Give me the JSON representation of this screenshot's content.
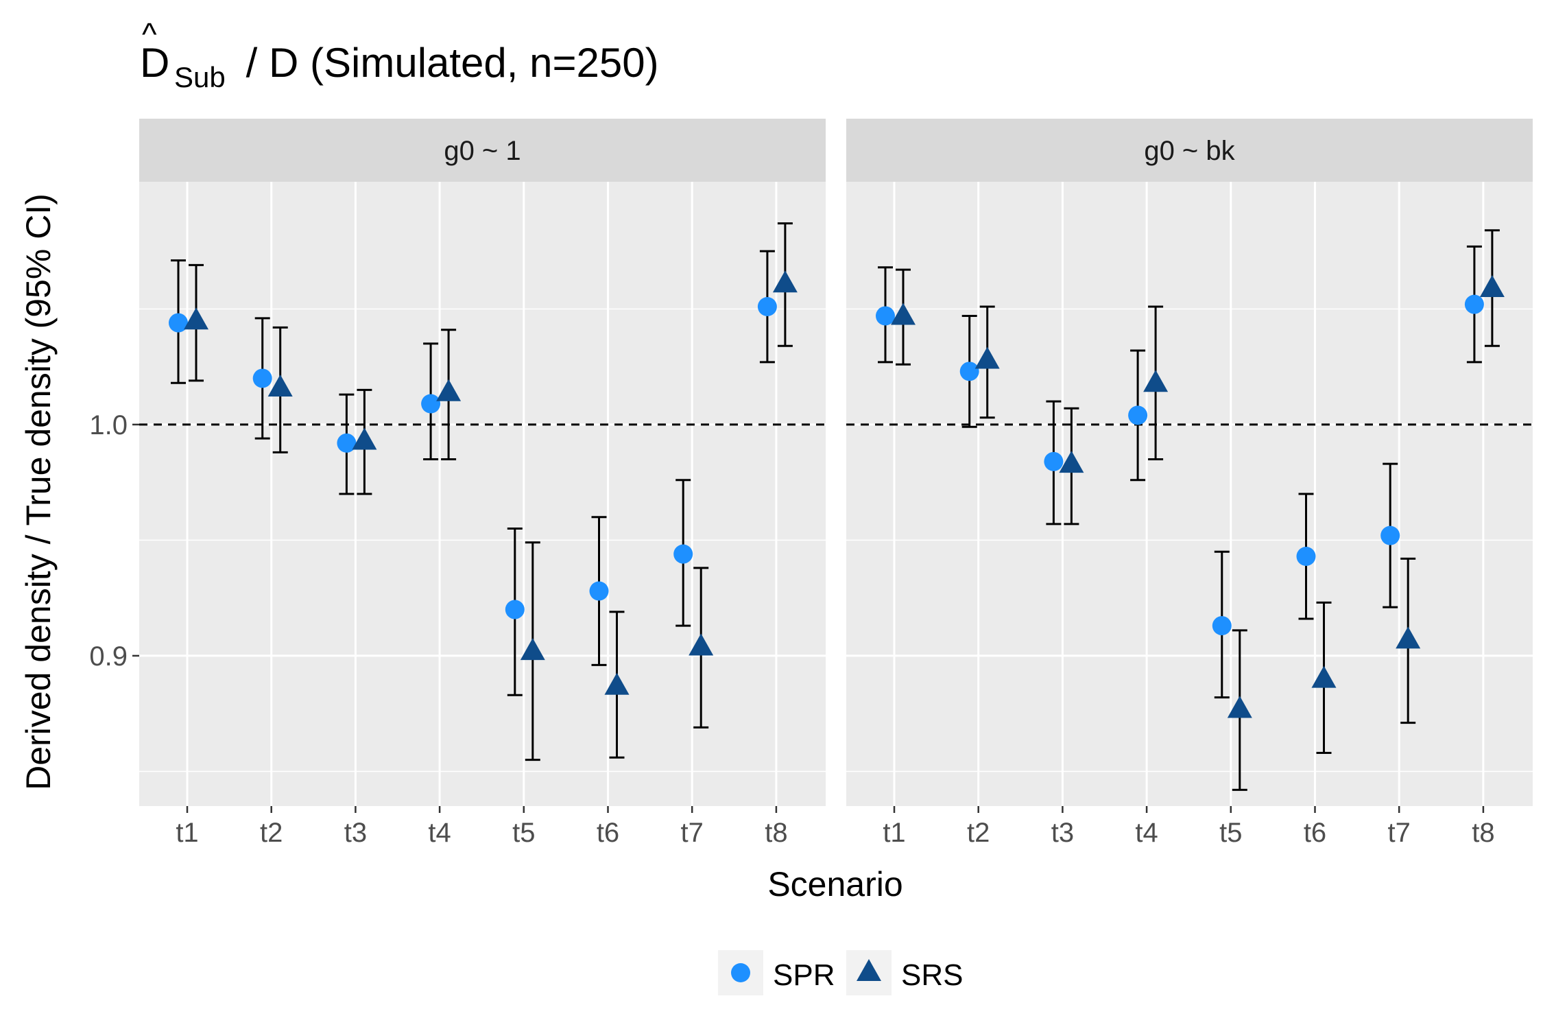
{
  "chart_data": {
    "type": "scatter",
    "title": {
      "hat": "^",
      "symbol": "D",
      "subscript": "Sub",
      "rest": " / D (Simulated, n=250)"
    },
    "xlabel": "Scenario",
    "ylabel": "Derived density / True density (95% CI)",
    "ylim": [
      0.835,
      1.105
    ],
    "yticks": [
      0.9,
      1.0
    ],
    "ytick_labels": [
      "0.9",
      "1.0"
    ],
    "y_minor_gridlines": [
      0.85,
      0.95,
      1.05
    ],
    "reference_line": 1.0,
    "categories": [
      "t1",
      "t2",
      "t3",
      "t4",
      "t5",
      "t6",
      "t7",
      "t8"
    ],
    "legend": {
      "position": "bottom",
      "entries": [
        {
          "name": "SPR",
          "shape": "circle",
          "color": "#1e90ff"
        },
        {
          "name": "SRS",
          "shape": "triangle",
          "color": "#0f4c8a"
        }
      ]
    },
    "panels": [
      {
        "label": "g0 ~ 1",
        "series": [
          {
            "name": "SPR",
            "values": [
              1.044,
              1.02,
              0.992,
              1.009,
              0.92,
              0.928,
              0.944,
              1.051
            ],
            "lower": [
              1.018,
              0.994,
              0.97,
              0.985,
              0.883,
              0.896,
              0.913,
              1.027
            ],
            "upper": [
              1.071,
              1.046,
              1.013,
              1.035,
              0.955,
              0.96,
              0.976,
              1.075
            ]
          },
          {
            "name": "SRS",
            "values": [
              1.045,
              1.016,
              0.993,
              1.014,
              0.902,
              0.887,
              0.904,
              1.061
            ],
            "lower": [
              1.019,
              0.988,
              0.97,
              0.985,
              0.855,
              0.856,
              0.869,
              1.034
            ],
            "upper": [
              1.069,
              1.042,
              1.015,
              1.041,
              0.949,
              0.919,
              0.938,
              1.087
            ]
          }
        ]
      },
      {
        "label": "g0 ~ bk",
        "series": [
          {
            "name": "SPR",
            "values": [
              1.047,
              1.023,
              0.984,
              1.004,
              0.913,
              0.943,
              0.952,
              1.052
            ],
            "lower": [
              1.027,
              0.999,
              0.957,
              0.976,
              0.882,
              0.916,
              0.921,
              1.027
            ],
            "upper": [
              1.068,
              1.047,
              1.01,
              1.032,
              0.945,
              0.97,
              0.983,
              1.077
            ]
          },
          {
            "name": "SRS",
            "values": [
              1.047,
              1.028,
              0.983,
              1.018,
              0.877,
              0.89,
              0.907,
              1.059
            ],
            "lower": [
              1.026,
              1.003,
              0.957,
              0.985,
              0.842,
              0.858,
              0.871,
              1.034
            ],
            "upper": [
              1.067,
              1.051,
              1.007,
              1.051,
              0.911,
              0.923,
              0.942,
              1.084
            ]
          }
        ]
      }
    ]
  }
}
